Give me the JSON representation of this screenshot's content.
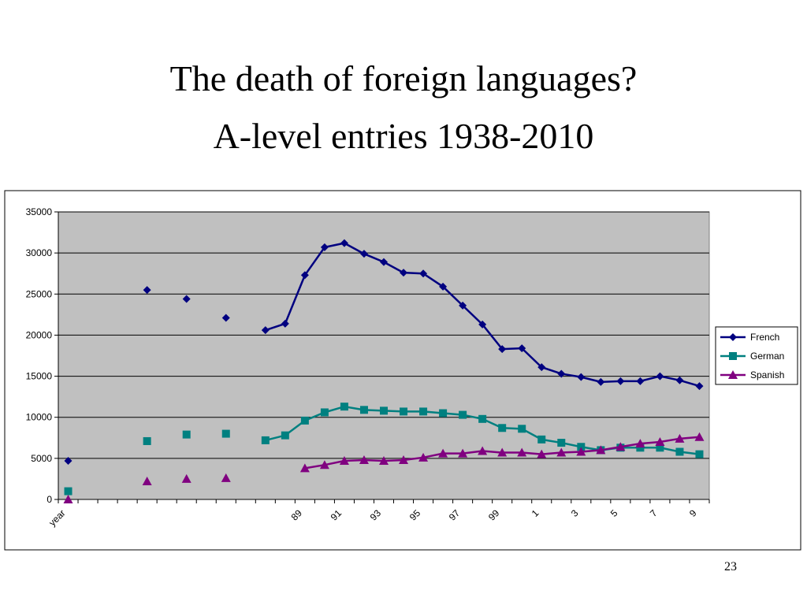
{
  "chart_data": {
    "type": "line",
    "title": "The death of foreign languages?",
    "subtitle": "A-level entries 1938-2010",
    "categories": [
      "year",
      null,
      null,
      null,
      null,
      null,
      null,
      null,
      null,
      null,
      null,
      null,
      "89",
      null,
      "91",
      null,
      "93",
      null,
      "95",
      null,
      "97",
      null,
      "99",
      null,
      "1",
      null,
      "3",
      null,
      "5",
      null,
      "7",
      null,
      "9"
    ],
    "series": [
      {
        "name": "French",
        "color": "#000080",
        "marker": "diamond",
        "values": [
          4700,
          null,
          null,
          null,
          25500,
          null,
          24400,
          null,
          22100,
          null,
          20600,
          21400,
          27300,
          30700,
          31200,
          29900,
          28900,
          27600,
          27500,
          25900,
          23600,
          21300,
          18300,
          18400,
          16100,
          15300,
          14900,
          14300,
          14400,
          14400,
          15000,
          14500,
          13800
        ]
      },
      {
        "name": "German",
        "color": "#008080",
        "marker": "square",
        "values": [
          1000,
          null,
          null,
          null,
          7100,
          null,
          7900,
          null,
          8000,
          null,
          7200,
          7800,
          9600,
          10600,
          11300,
          10900,
          10800,
          10700,
          10700,
          10500,
          10300,
          9800,
          8700,
          8600,
          7300,
          6900,
          6400,
          6000,
          6300,
          6300,
          6300,
          5800,
          5500
        ]
      },
      {
        "name": "Spanish",
        "color": "#800080",
        "marker": "triangle",
        "values": [
          0,
          null,
          null,
          null,
          2200,
          null,
          2500,
          null,
          2600,
          null,
          null,
          null,
          3800,
          4200,
          4700,
          4800,
          4700,
          4800,
          5100,
          5600,
          5600,
          5900,
          5700,
          5700,
          5500,
          5700,
          5800,
          6000,
          6400,
          6800,
          7000,
          7400,
          7600
        ]
      }
    ],
    "ylim": [
      0,
      35000
    ],
    "yticks": [
      0,
      5000,
      10000,
      15000,
      20000,
      25000,
      30000,
      35000
    ],
    "grid": true,
    "legend": "right"
  },
  "slide_number": "23"
}
